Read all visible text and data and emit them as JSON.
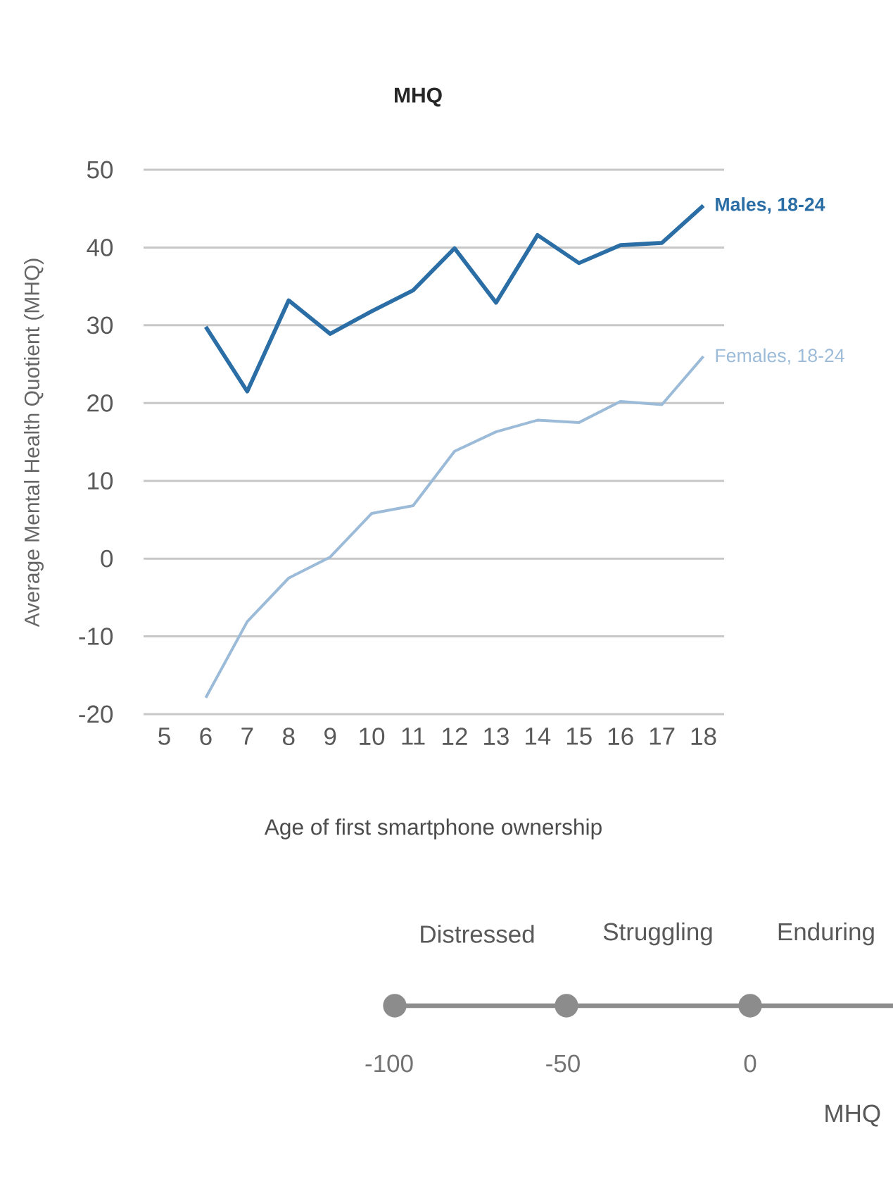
{
  "chart_data": {
    "type": "line",
    "title": "MHQ",
    "xlabel": "Age of first smartphone ownership",
    "ylabel": "Average Mental Health Quotient (MHQ)",
    "xlim": [
      4.5,
      18.5
    ],
    "xticks": [
      5,
      6,
      7,
      8,
      9,
      10,
      11,
      12,
      13,
      14,
      15,
      16,
      17,
      18
    ],
    "ylim": [
      -20,
      50
    ],
    "yticks": [
      -20,
      -10,
      0,
      10,
      20,
      30,
      40,
      50
    ],
    "grid": "y",
    "legend": false,
    "marker": "none",
    "line_style": "solid",
    "series": [
      {
        "name": "Males, 18-24",
        "color": "#2b6ea6",
        "x": [
          6,
          7,
          8,
          9,
          10,
          11,
          12,
          13,
          14,
          15,
          16,
          17,
          18
        ],
        "values": [
          29.8,
          21.5,
          33.2,
          28.9,
          31.8,
          34.5,
          39.9,
          32.9,
          41.6,
          38.0,
          40.3,
          40.6,
          45.4
        ]
      },
      {
        "name": "Females, 18-24",
        "color": "#9bbbd8",
        "x": [
          6,
          7,
          8,
          9,
          10,
          11,
          12,
          13,
          14,
          15,
          16,
          17,
          18
        ],
        "values": [
          -17.9,
          -8.1,
          -2.5,
          0.2,
          5.8,
          6.8,
          13.8,
          16.3,
          17.8,
          17.5,
          20.2,
          19.8,
          26.0
        ]
      }
    ],
    "annotations": [
      "Distressed",
      "Struggling",
      "Enduring",
      "-100",
      "-50",
      "0",
      "MHQ"
    ]
  }
}
